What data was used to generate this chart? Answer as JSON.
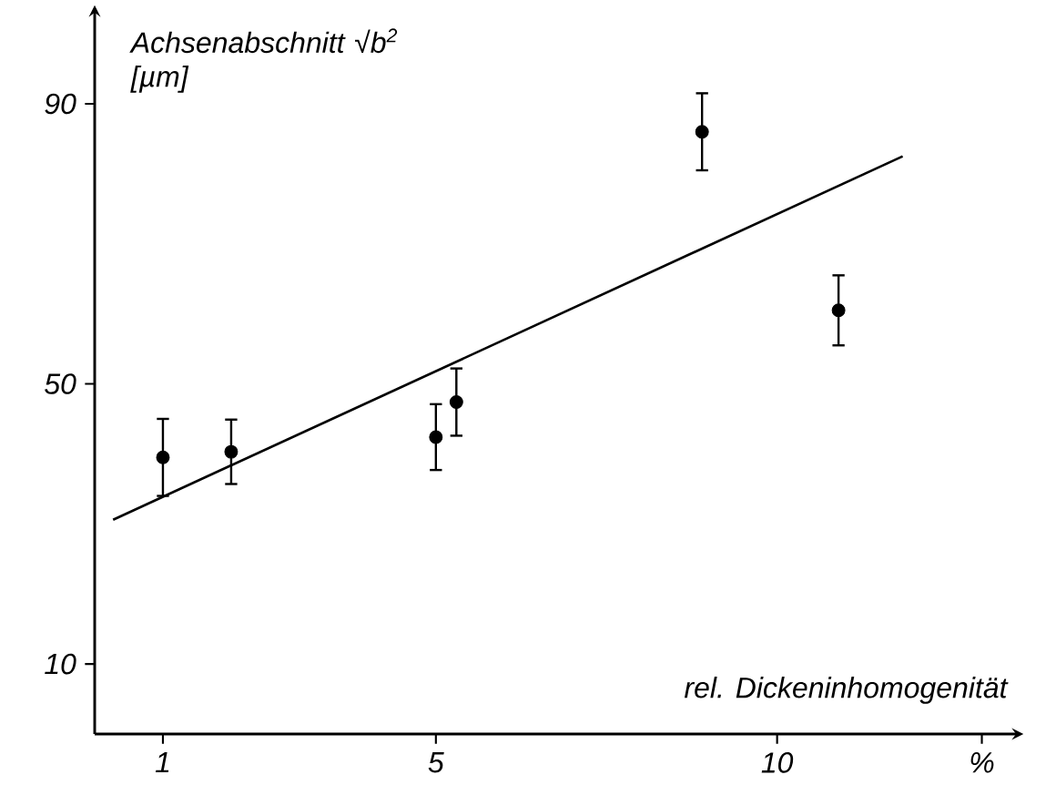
{
  "chart_data": {
    "type": "scatter",
    "ylabel": "Achsenabschnitt √b$^{2}$ [µm]",
    "xlabel": "rel. Dickeninhomogenität",
    "xlim": [
      0,
      13.5
    ],
    "ylim": [
      0,
      103
    ],
    "xticks": [
      1,
      5,
      10,
      {
        "value": 13,
        "label": "%"
      }
    ],
    "yticks": [
      10,
      50,
      90
    ],
    "series": [
      {
        "marker": "circle",
        "color": "#000000",
        "x": [
          1,
          2,
          5,
          5.3,
          8.9,
          10.9
        ],
        "values": [
          39.5,
          40.3,
          42.4,
          47.4,
          86,
          60.5
        ],
        "errors": [
          5.5,
          4.6,
          4.7,
          4.8,
          5.5,
          5
        ]
      },
      {
        "type": "line",
        "marker": "none",
        "color": "#000000",
        "line_style": "solid",
        "x": [
          0.27,
          11.84
        ],
        "values": [
          30.6,
          82.5
        ]
      }
    ]
  }
}
